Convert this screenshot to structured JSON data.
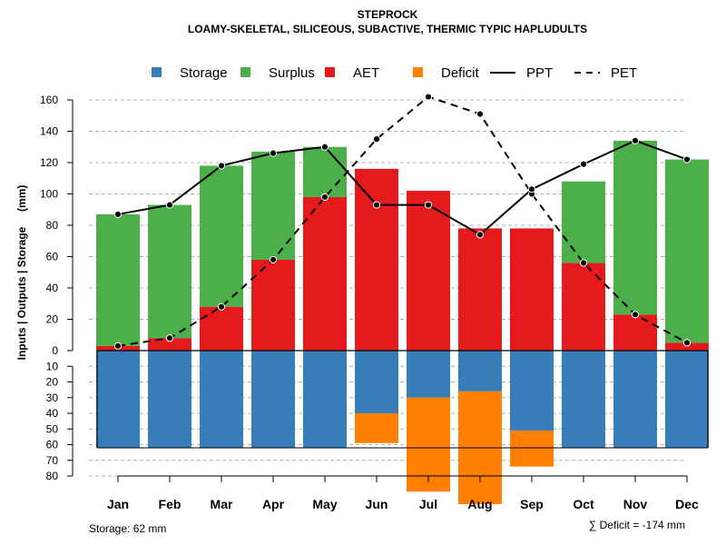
{
  "chart_data": {
    "type": "bar",
    "title": "STEPROCK",
    "subtitle": "LOAMY-SKELETAL, SILICEOUS, SUBACTIVE, THERMIC TYPIC HAPLUDULTS",
    "ylabel": "Inputs | Outputs | Storage     (mm)",
    "categories": [
      "Jan",
      "Feb",
      "Mar",
      "Apr",
      "May",
      "Jun",
      "Jul",
      "Aug",
      "Sep",
      "Oct",
      "Nov",
      "Dec"
    ],
    "upper_ticks": [
      "0",
      "20",
      "40",
      "60",
      "80",
      "100",
      "120",
      "140",
      "160"
    ],
    "lower_ticks": [
      "10",
      "20",
      "30",
      "40",
      "50",
      "60",
      "70",
      "80"
    ],
    "ylim_upper": [
      0,
      170
    ],
    "ylim_lower": [
      0,
      80
    ],
    "legend": [
      {
        "label": "Storage",
        "kind": "box",
        "color": "#377eb8"
      },
      {
        "label": "Surplus",
        "kind": "box",
        "color": "#4daf4a"
      },
      {
        "label": "AET",
        "kind": "box",
        "color": "#e41a1c"
      },
      {
        "label": "Deficit",
        "kind": "box",
        "color": "#ff7f00"
      },
      {
        "label": "PPT",
        "kind": "solid",
        "color": "#000000"
      },
      {
        "label": "PET",
        "kind": "dashed",
        "color": "#000000"
      }
    ],
    "series": [
      {
        "name": "AET",
        "values": [
          3,
          8,
          28,
          58,
          98,
          116,
          102,
          78,
          78,
          56,
          23,
          5
        ]
      },
      {
        "name": "Surplus",
        "values": [
          84,
          85,
          90,
          69,
          32,
          0,
          0,
          0,
          0,
          52,
          111,
          117
        ]
      },
      {
        "name": "Storage",
        "values": [
          62,
          62,
          62,
          62,
          62,
          40,
          30,
          26,
          51,
          62,
          62,
          62
        ]
      },
      {
        "name": "Deficit",
        "values": [
          0,
          0,
          0,
          0,
          0,
          19,
          60,
          72,
          23,
          0,
          0,
          0
        ]
      },
      {
        "name": "PPT",
        "values": [
          87,
          93,
          118,
          126,
          130,
          93,
          93,
          74,
          103,
          119,
          134,
          122
        ]
      },
      {
        "name": "PET",
        "values": [
          3,
          8,
          28,
          58,
          98,
          135,
          162,
          151,
          100,
          56,
          23,
          5
        ]
      }
    ],
    "storage_capacity": 62,
    "colors": {
      "storage": "#377eb8",
      "surplus": "#4daf4a",
      "aet": "#e41a1c",
      "deficit": "#ff7f00",
      "grid": "#b0b0b0",
      "line": "#000000",
      "point_edge": "#ffffff"
    }
  },
  "footer": {
    "storage_note": "Storage: 62 mm",
    "deficit_note": "∑ Deficit = -174 mm"
  }
}
